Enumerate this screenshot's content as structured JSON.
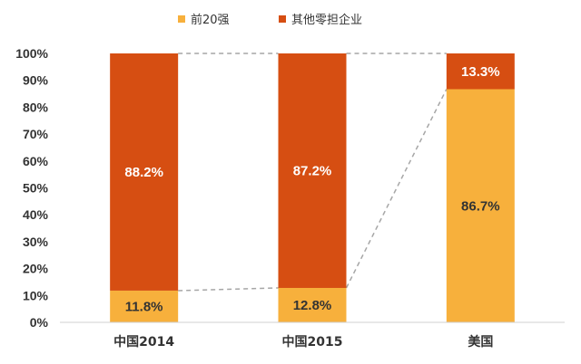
{
  "chart_data": {
    "type": "bar",
    "stacked": true,
    "percent": true,
    "categories": [
      "中国2014",
      "中国2015",
      "美国"
    ],
    "series": [
      {
        "name": "前20强",
        "color": "#F7B03C",
        "values": [
          11.8,
          12.8,
          86.7
        ],
        "labels": [
          "11.8%",
          "12.8%",
          "86.7%"
        ],
        "label_color": "#333333"
      },
      {
        "name": "其他零担企业",
        "color": "#D64E12",
        "values": [
          88.2,
          87.2,
          13.3
        ],
        "labels": [
          "88.2%",
          "87.2%",
          "13.3%"
        ],
        "label_color": "#ffffff"
      }
    ],
    "ylim": [
      0,
      100
    ],
    "yticks": [
      "0%",
      "10%",
      "20%",
      "30%",
      "40%",
      "50%",
      "60%",
      "70%",
      "80%",
      "90%",
      "100%"
    ],
    "connector_lines": "dashed",
    "grid": false,
    "legend_position": "top-center",
    "title": "",
    "xlabel": "",
    "ylabel": ""
  }
}
